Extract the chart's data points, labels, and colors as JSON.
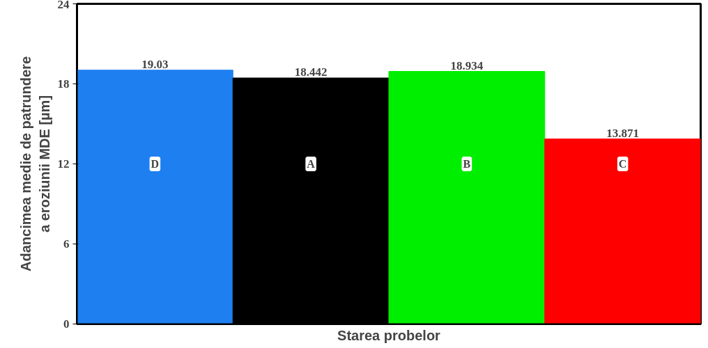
{
  "chart_data": {
    "type": "bar",
    "xlabel": "Starea probelor",
    "ylabel": "Adancimea medie de patrundere\na eroziunii MDE [µm]",
    "categories": [
      "D",
      "A",
      "B",
      "C"
    ],
    "values": [
      19.03,
      18.442,
      18.934,
      13.871
    ],
    "colors": [
      "#1e7ff0",
      "#000000",
      "#00ee00",
      "#ff0000"
    ],
    "data_labels": true,
    "ylim": [
      0,
      24
    ],
    "yticks": [
      0,
      6,
      12,
      18,
      24
    ],
    "grid": false
  }
}
